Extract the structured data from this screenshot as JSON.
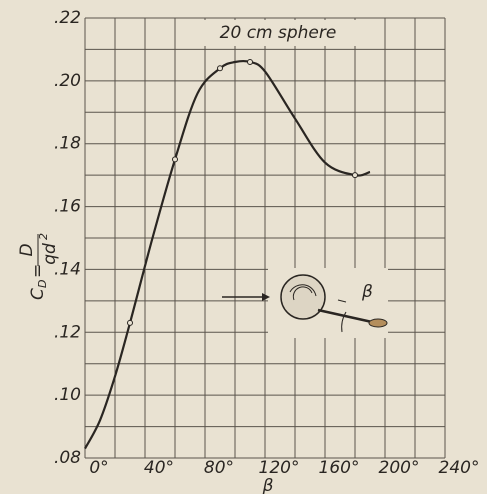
{
  "chart_data": {
    "type": "line",
    "annotation": "20 cm sphere",
    "xlabel": "β",
    "ylabel": {
      "symbol": "C",
      "subscript": "D",
      "equals": "=",
      "numerator": "D",
      "denominator": "qd",
      "power": "2"
    },
    "diagram_label": "β",
    "x": [
      0,
      10,
      20,
      30,
      45,
      60,
      75,
      90,
      100,
      110,
      120,
      140,
      160,
      180,
      190
    ],
    "series": [
      {
        "color": "#2a2622",
        "values": [
          0.083,
          0.092,
          0.106,
          0.123,
          0.15,
          0.175,
          0.196,
          0.204,
          0.206,
          0.206,
          0.203,
          0.188,
          0.174,
          0.17,
          0.171
        ]
      }
    ],
    "points": {
      "x": [
        30,
        60,
        90,
        110,
        180
      ],
      "values": [
        0.123,
        0.175,
        0.204,
        0.206,
        0.17
      ]
    },
    "xlim": [
      0,
      240
    ],
    "ylim": [
      0.08,
      0.22
    ],
    "xticks": [
      {
        "value": 0,
        "label": "0°"
      },
      {
        "value": 40,
        "label": "40°"
      },
      {
        "value": 80,
        "label": "80°"
      },
      {
        "value": 120,
        "label": "120°"
      },
      {
        "value": 160,
        "label": "160°"
      },
      {
        "value": 200,
        "label": "200°"
      },
      {
        "value": 240,
        "label": "240°"
      }
    ],
    "x_minor_ticks": [
      20,
      60,
      100,
      140,
      180,
      220
    ],
    "yticks": [
      {
        "value": 0.08,
        "label": ".08"
      },
      {
        "value": 0.1,
        "label": ".10"
      },
      {
        "value": 0.12,
        "label": ".12"
      },
      {
        "value": 0.14,
        "label": ".14"
      },
      {
        "value": 0.16,
        "label": ".16"
      },
      {
        "value": 0.18,
        "label": ".18"
      },
      {
        "value": 0.2,
        "label": ".20"
      },
      {
        "value": 0.22,
        "label": ".22"
      }
    ],
    "y_minor_ticks": [
      0.09,
      0.11,
      0.13,
      0.15,
      0.17,
      0.19,
      0.21
    ],
    "grid": true
  }
}
